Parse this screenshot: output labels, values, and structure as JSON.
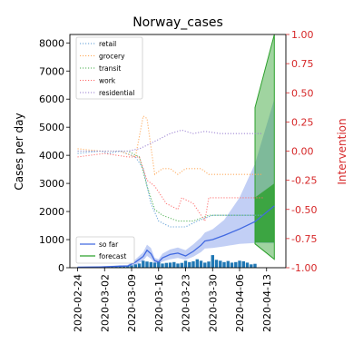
{
  "chart_data": {
    "type": "line",
    "title": "Norway_cases",
    "ylabel_left": "Cases per day",
    "ylabel_right": "Intervention",
    "ylim_left": [
      0,
      8300
    ],
    "ylim_right": [
      -1.0,
      1.0
    ],
    "xlim": [
      "2020-02-22",
      "2020-04-18"
    ],
    "grid": false,
    "x_ticks": [
      "2020-02-24",
      "2020-03-02",
      "2020-03-09",
      "2020-03-16",
      "2020-03-23",
      "2020-03-30",
      "2020-04-06",
      "2020-04-13"
    ],
    "y_ticks_left": [
      0,
      1000,
      2000,
      3000,
      4000,
      5000,
      6000,
      7000,
      8000
    ],
    "y_ticks_right": [
      -1.0,
      -0.75,
      -0.5,
      -0.25,
      0.0,
      0.25,
      0.5,
      0.75,
      1.0
    ],
    "colors": {
      "so_far": "#4169e1",
      "forecast": "#2ca02c",
      "bars": "#1f77b4",
      "right_axis": "#d62728",
      "retail": "#5b9bd5",
      "grocery": "#ffa756",
      "transit": "#4caf50",
      "work": "#ff6b6b",
      "residential": "#9a7fd1"
    },
    "legend_top_left": {
      "placement": "upper-left",
      "entries": [
        "retail",
        "grocery",
        "transit",
        "work",
        "residential"
      ]
    },
    "legend_bottom_left": {
      "placement": "lower-left",
      "entries": [
        "so far",
        "forecast"
      ]
    },
    "bars": {
      "dates": [
        "2020-02-26",
        "2020-02-27",
        "2020-02-28",
        "2020-02-29",
        "2020-03-01",
        "2020-03-02",
        "2020-03-03",
        "2020-03-04",
        "2020-03-05",
        "2020-03-06",
        "2020-03-07",
        "2020-03-08",
        "2020-03-09",
        "2020-03-10",
        "2020-03-11",
        "2020-03-12",
        "2020-03-13",
        "2020-03-14",
        "2020-03-15",
        "2020-03-16",
        "2020-03-17",
        "2020-03-18",
        "2020-03-19",
        "2020-03-20",
        "2020-03-21",
        "2020-03-22",
        "2020-03-23",
        "2020-03-24",
        "2020-03-25",
        "2020-03-26",
        "2020-03-27",
        "2020-03-28",
        "2020-03-29",
        "2020-03-30",
        "2020-03-31",
        "2020-04-01",
        "2020-04-02",
        "2020-04-03",
        "2020-04-04",
        "2020-04-05",
        "2020-04-06",
        "2020-04-07",
        "2020-04-08",
        "2020-04-09",
        "2020-04-10"
      ],
      "values": [
        5,
        10,
        15,
        20,
        30,
        25,
        40,
        50,
        60,
        70,
        50,
        60,
        80,
        120,
        150,
        250,
        220,
        200,
        180,
        200,
        150,
        170,
        180,
        200,
        150,
        170,
        250,
        200,
        230,
        300,
        250,
        180,
        220,
        450,
        280,
        250,
        200,
        240,
        180,
        200,
        250,
        230,
        180,
        120,
        140
      ]
    },
    "series": [
      {
        "name": "so far",
        "x": [
          "2020-02-24",
          "2020-03-01",
          "2020-03-08",
          "2020-03-10",
          "2020-03-12",
          "2020-03-13",
          "2020-03-14",
          "2020-03-15",
          "2020-03-16",
          "2020-03-17",
          "2020-03-19",
          "2020-03-21",
          "2020-03-23",
          "2020-03-25",
          "2020-03-27",
          "2020-03-28",
          "2020-03-30",
          "2020-04-02",
          "2020-04-06",
          "2020-04-10",
          "2020-04-15"
        ],
        "y": [
          20,
          30,
          60,
          200,
          400,
          620,
          500,
          250,
          200,
          350,
          470,
          520,
          420,
          580,
          800,
          950,
          1000,
          1150,
          1380,
          1640,
          2200
        ],
        "lower": [
          10,
          15,
          30,
          100,
          250,
          420,
          320,
          150,
          120,
          220,
          300,
          350,
          280,
          390,
          560,
          680,
          700,
          760,
          850,
          880,
          870
        ],
        "upper": [
          30,
          50,
          100,
          300,
          550,
          820,
          700,
          350,
          300,
          500,
          650,
          720,
          620,
          830,
          1080,
          1250,
          1370,
          1700,
          2500,
          3700,
          6000
        ]
      },
      {
        "name": "forecast",
        "x": [
          "2020-04-10",
          "2020-04-15"
        ],
        "y": [
          1800,
          2800
        ],
        "lower": [
          850,
          300
        ],
        "upper": [
          5700,
          8300
        ],
        "inner_lower": [
          900,
          900
        ],
        "inner_upper": [
          2500,
          3000
        ]
      },
      {
        "name": "retail",
        "x": [
          "2020-02-24",
          "2020-03-01",
          "2020-03-03",
          "2020-03-06",
          "2020-03-10",
          "2020-03-12",
          "2020-03-14",
          "2020-03-16",
          "2020-03-19",
          "2020-03-23",
          "2020-03-26",
          "2020-03-30",
          "2020-04-02",
          "2020-04-06",
          "2020-04-09",
          "2020-04-12"
        ],
        "y": [
          -0.02,
          0.0,
          -0.02,
          0.0,
          -0.05,
          -0.15,
          -0.45,
          -0.6,
          -0.65,
          -0.65,
          -0.6,
          -0.55,
          -0.55,
          -0.55,
          -0.55,
          -0.55
        ]
      },
      {
        "name": "grocery",
        "x": [
          "2020-02-24",
          "2020-03-01",
          "2020-03-06",
          "2020-03-10",
          "2020-03-12",
          "2020-03-13",
          "2020-03-15",
          "2020-03-17",
          "2020-03-19",
          "2020-03-21",
          "2020-03-23",
          "2020-03-25",
          "2020-03-27",
          "2020-03-29",
          "2020-03-31",
          "2020-04-04",
          "2020-04-08",
          "2020-04-12"
        ],
        "y": [
          0.02,
          0.0,
          0.0,
          -0.05,
          0.3,
          0.28,
          -0.2,
          -0.15,
          -0.15,
          -0.2,
          -0.15,
          -0.15,
          -0.15,
          -0.2,
          -0.2,
          -0.2,
          -0.2,
          -0.2
        ]
      },
      {
        "name": "transit",
        "x": [
          "2020-02-24",
          "2020-03-02",
          "2020-03-08",
          "2020-03-11",
          "2020-03-13",
          "2020-03-15",
          "2020-03-17",
          "2020-03-21",
          "2020-03-25",
          "2020-03-29",
          "2020-04-02",
          "2020-04-06",
          "2020-04-10",
          "2020-04-12"
        ],
        "y": [
          0.0,
          0.0,
          0.0,
          -0.05,
          -0.3,
          -0.5,
          -0.55,
          -0.6,
          -0.6,
          -0.55,
          -0.55,
          -0.55,
          -0.55,
          -0.55
        ]
      },
      {
        "name": "work",
        "x": [
          "2020-02-24",
          "2020-03-02",
          "2020-03-08",
          "2020-03-11",
          "2020-03-13",
          "2020-03-15",
          "2020-03-18",
          "2020-03-21",
          "2020-03-22",
          "2020-03-25",
          "2020-03-28",
          "2020-03-29",
          "2020-04-01",
          "2020-04-05",
          "2020-04-10",
          "2020-04-12"
        ],
        "y": [
          -0.05,
          -0.02,
          -0.05,
          -0.05,
          -0.25,
          -0.3,
          -0.45,
          -0.5,
          -0.4,
          -0.45,
          -0.6,
          -0.4,
          -0.4,
          -0.4,
          -0.4,
          -0.4
        ]
      },
      {
        "name": "residential",
        "x": [
          "2020-02-24",
          "2020-03-02",
          "2020-03-08",
          "2020-03-11",
          "2020-03-13",
          "2020-03-16",
          "2020-03-19",
          "2020-03-22",
          "2020-03-25",
          "2020-03-28",
          "2020-04-01",
          "2020-04-05",
          "2020-04-10",
          "2020-04-12"
        ],
        "y": [
          0.0,
          0.0,
          0.0,
          0.02,
          0.05,
          0.1,
          0.15,
          0.18,
          0.15,
          0.17,
          0.15,
          0.15,
          0.15,
          0.15
        ]
      }
    ]
  }
}
